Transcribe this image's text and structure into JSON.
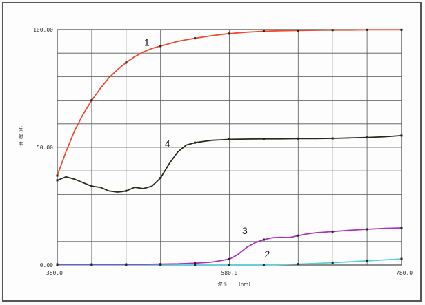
{
  "chart_data": {
    "type": "line",
    "title": "",
    "xlabel": "波長",
    "xlabel_unit": "(nm)",
    "ylabel": "反射率",
    "xlim": [
      380,
      780
    ],
    "ylim": [
      0,
      100
    ],
    "x_tick_labels": [
      "380.0",
      "580.0",
      "780.0"
    ],
    "y_tick_labels": [
      "0.00",
      "50.00",
      "100.00"
    ],
    "grid": true,
    "legend": "none",
    "series": [
      {
        "label": "1",
        "color": "#f04a2e",
        "x": [
          380,
          390,
          400,
          410,
          420,
          430,
          440,
          450,
          460,
          470,
          480,
          490,
          500,
          510,
          520,
          530,
          540,
          550,
          560,
          570,
          580,
          590,
          600,
          610,
          620,
          640,
          660,
          680,
          700,
          720,
          740,
          760,
          780
        ],
        "y": [
          38,
          48,
          57,
          64,
          70,
          75,
          79.5,
          83,
          86,
          88.5,
          90.5,
          92,
          93,
          94,
          95,
          95.7,
          96.3,
          96.9,
          97.4,
          97.9,
          98.3,
          98.6,
          98.9,
          99.1,
          99.3,
          99.5,
          99.6,
          99.7,
          99.8,
          99.8,
          99.9,
          99.9,
          99.9
        ]
      },
      {
        "label": "2",
        "color": "#5ad0d8",
        "x": [
          380,
          400,
          420,
          440,
          460,
          480,
          500,
          520,
          540,
          560,
          580,
          600,
          620,
          640,
          660,
          680,
          700,
          720,
          740,
          760,
          780
        ],
        "y": [
          0,
          0,
          0,
          0,
          0,
          0,
          0,
          0,
          0,
          0,
          0,
          0,
          0,
          0.2,
          0.4,
          0.7,
          1,
          1.4,
          1.8,
          2.2,
          2.6
        ]
      },
      {
        "label": "3",
        "color": "#b02ec0",
        "x": [
          380,
          400,
          420,
          440,
          460,
          480,
          500,
          520,
          540,
          560,
          580,
          590,
          600,
          610,
          620,
          630,
          640,
          650,
          660,
          670,
          680,
          700,
          720,
          740,
          760,
          780
        ],
        "y": [
          0.3,
          0.3,
          0.3,
          0.3,
          0.3,
          0.3,
          0.4,
          0.5,
          0.8,
          1.3,
          2.5,
          4.5,
          7.5,
          9.5,
          10.8,
          11.6,
          11.8,
          11.7,
          12.5,
          13.2,
          13.7,
          14.2,
          14.8,
          15.2,
          15.6,
          15.8
        ]
      },
      {
        "label": "4",
        "color": "#2a2a1a",
        "x": [
          380,
          390,
          400,
          410,
          420,
          430,
          440,
          450,
          455,
          460,
          470,
          480,
          490,
          500,
          510,
          520,
          530,
          540,
          550,
          560,
          570,
          580,
          600,
          620,
          640,
          660,
          680,
          700,
          720,
          740,
          760,
          780
        ],
        "y": [
          36,
          37.5,
          36.5,
          35,
          33.5,
          33,
          31.5,
          31,
          31.2,
          31.5,
          33,
          32.5,
          33.5,
          37,
          43,
          48,
          51,
          52,
          52.5,
          53,
          53.2,
          53.4,
          53.5,
          53.6,
          53.6,
          53.7,
          53.7,
          53.8,
          54,
          54.2,
          54.5,
          55
        ]
      }
    ],
    "curve_labels": [
      {
        "text": "1",
        "x": 484,
        "y": 92
      },
      {
        "text": "2",
        "x": 624,
        "y": 2
      },
      {
        "text": "3",
        "x": 598,
        "y": 12
      },
      {
        "text": "4",
        "x": 508,
        "y": 49
      }
    ]
  }
}
